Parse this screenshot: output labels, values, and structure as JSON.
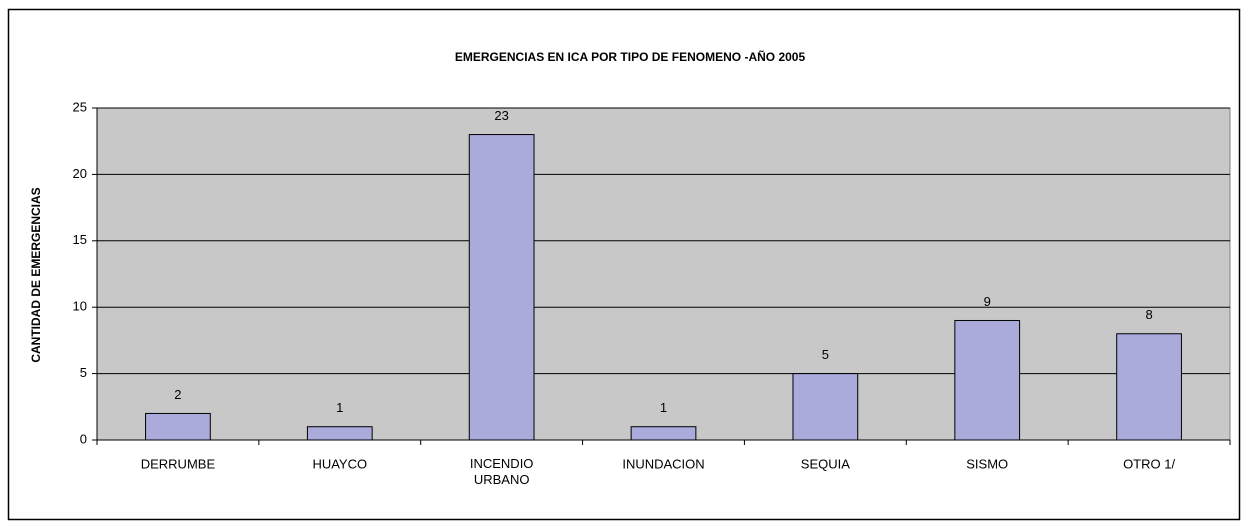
{
  "chart_data": {
    "type": "bar",
    "title": "EMERGENCIAS EN ICA POR TIPO DE FENOMENO -AÑO 2005",
    "y_label": "CANTIDAD DE EMERGENCIAS",
    "categories": [
      "DERRUMBE",
      "HUAYCO",
      "INCENDIO URBANO",
      "INUNDACION",
      "SEQUIA",
      "SISMO",
      "OTRO 1/"
    ],
    "values": [
      2,
      1,
      23,
      1,
      5,
      9,
      8
    ],
    "color": "#aaaadb",
    "ylim": [
      0,
      25
    ],
    "yticks": [
      0,
      5,
      10,
      15,
      20,
      25
    ],
    "grid": true
  }
}
